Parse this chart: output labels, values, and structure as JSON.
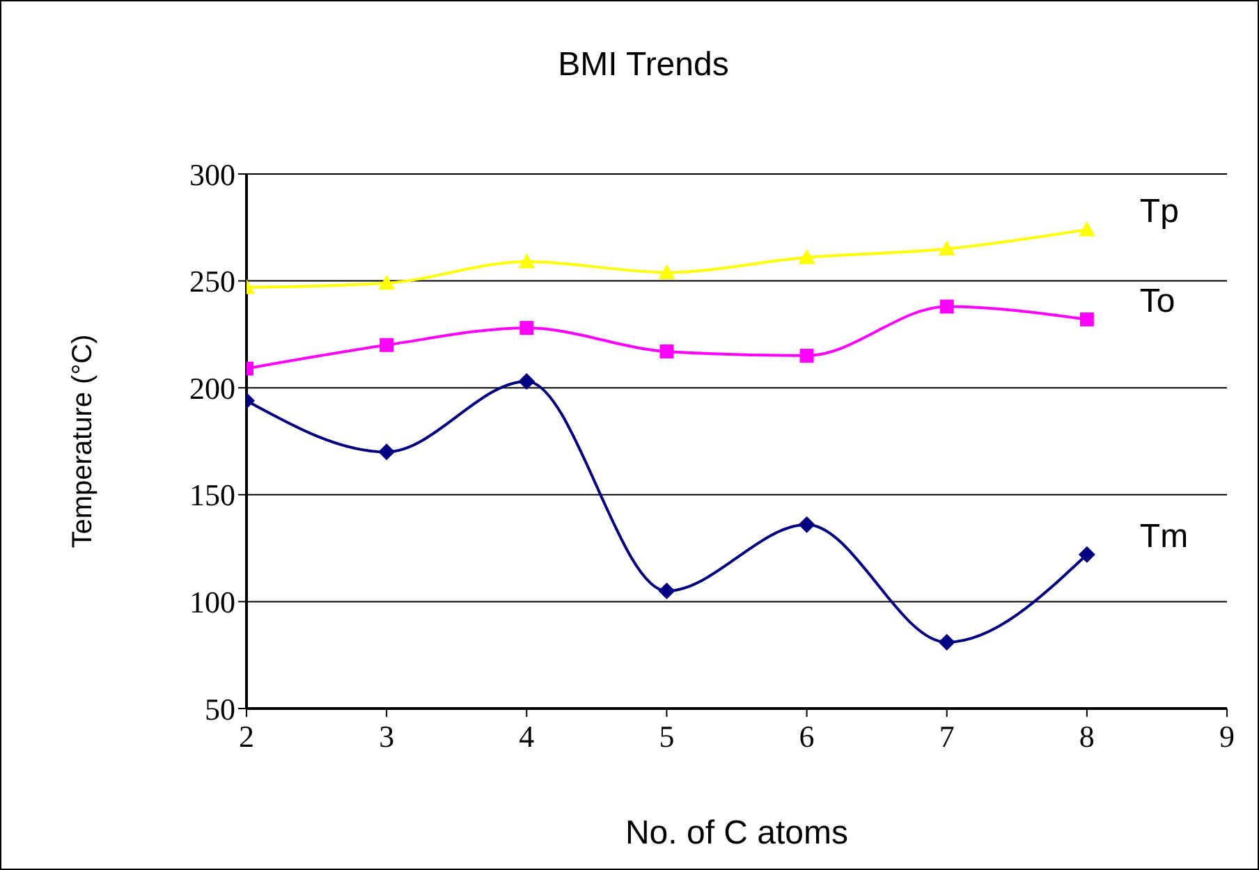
{
  "chart_data": {
    "type": "line",
    "title": "BMI Trends",
    "xlabel": "No. of C atoms",
    "ylabel": "Temperature (°C)",
    "x": [
      2,
      3,
      4,
      5,
      6,
      7,
      8
    ],
    "series": [
      {
        "name": "Tp",
        "color": "#ffff00",
        "marker": "triangle",
        "values": [
          247,
          249,
          259,
          254,
          261,
          265,
          274
        ]
      },
      {
        "name": "To",
        "color": "#ff00ff",
        "marker": "square",
        "values": [
          209,
          220,
          228,
          217,
          215,
          238,
          232
        ]
      },
      {
        "name": "Tm",
        "color": "#000080",
        "marker": "diamond",
        "values": [
          194,
          170,
          203,
          105,
          136,
          81,
          122
        ]
      }
    ],
    "xlim": [
      2,
      9
    ],
    "xticks": [
      2,
      3,
      4,
      5,
      6,
      7,
      8,
      9
    ],
    "ylim": [
      50,
      300
    ],
    "yticks": [
      50,
      100,
      150,
      200,
      250,
      300
    ],
    "grid": "y",
    "legend": false,
    "line_style": "solid"
  }
}
